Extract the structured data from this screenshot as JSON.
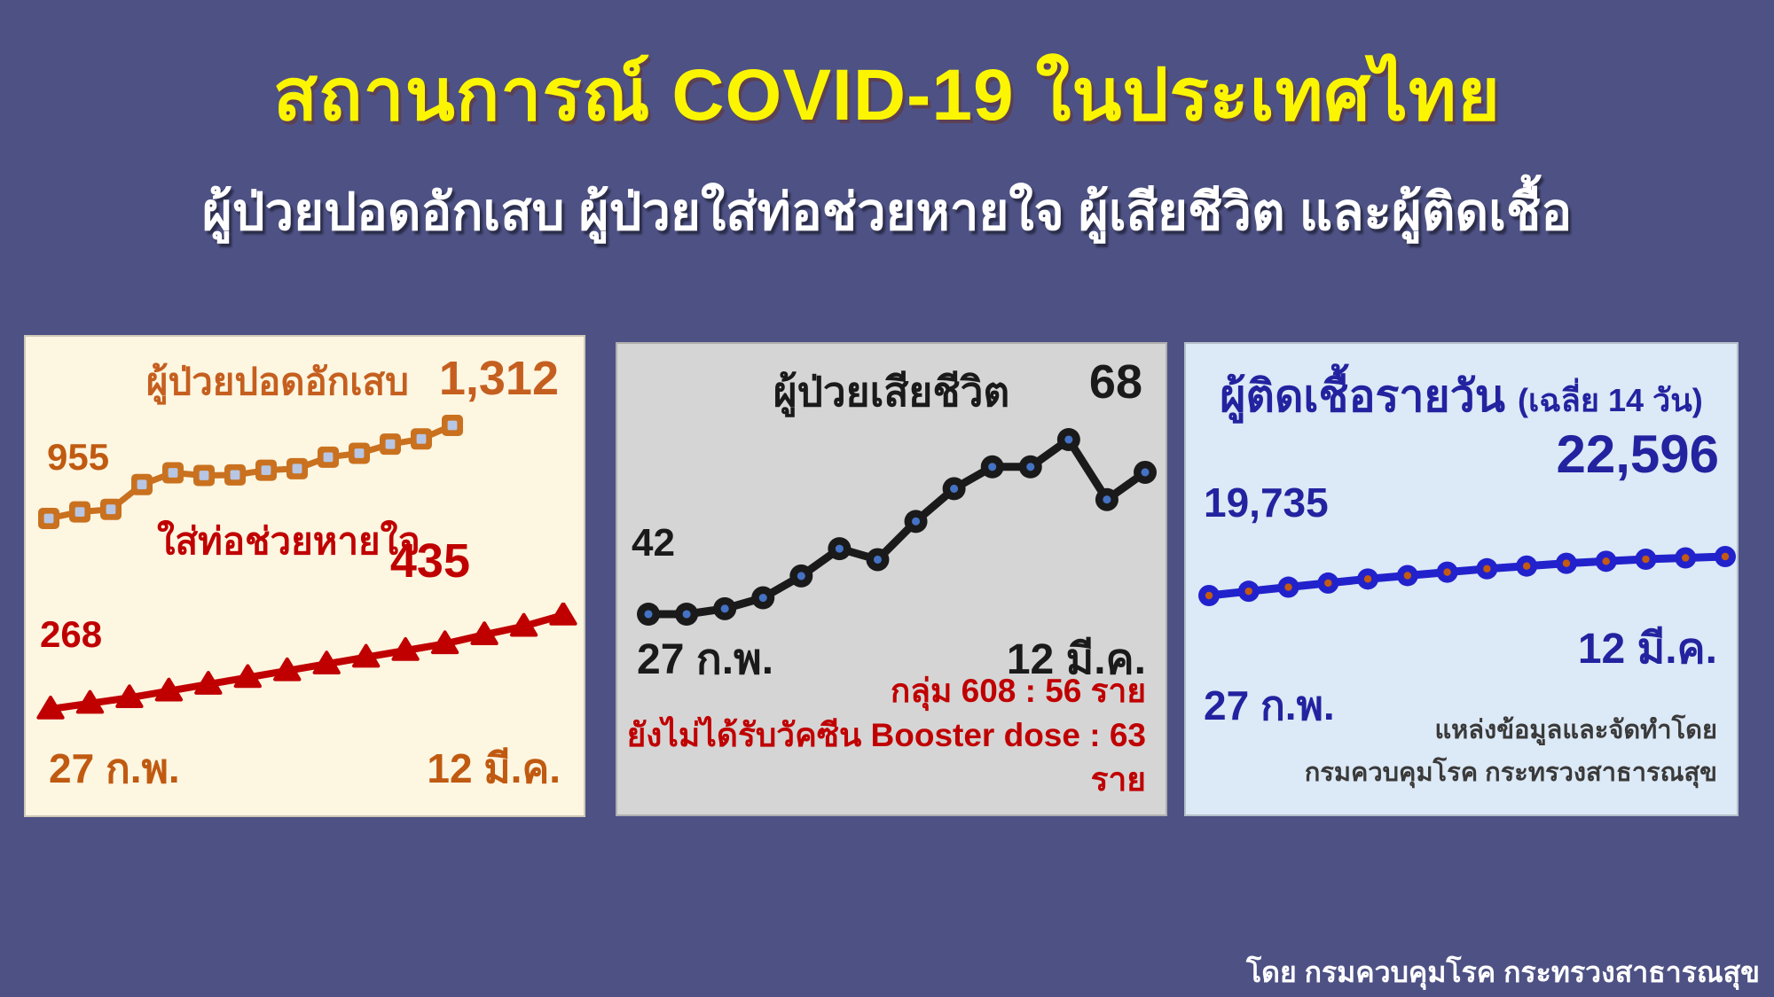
{
  "header": {
    "title": "สถานการณ์ COVID-19 ในประเทศไทย",
    "subtitle": "ผู้ป่วยปอดอักเสบ ผู้ป่วยใส่ท่อช่วยหายใจ ผู้เสียชีวิต และผู้ติดเชื้อ"
  },
  "footer": {
    "credit": "โดย กรมควบคุมโรค กระทรวงสาธารณสุข"
  },
  "colors": {
    "background": "#4D5184",
    "title_yellow": "#FCF502",
    "subtitle_white": "#FFFFFF",
    "panel_pneumonia_bg": "#FDF6E1",
    "panel_deaths_bg": "#D5D5D5",
    "panel_infections_bg": "#DCE9F6",
    "orange": "#C9711F",
    "orange_text": "#C55F1F",
    "orange_date": "#C05A11",
    "marker_blue_fill": "#B6C6E4",
    "dark_red": "#C00000",
    "black_line": "#1A1A1A",
    "deaths_dot_center": "#4472C4",
    "royal_blue": "#2222CC",
    "infections_dot_center": "#C55A11",
    "dark_blue_text": "#2323A0",
    "source_gray": "#3A3A3A"
  },
  "chart_data": [
    {
      "type": "line",
      "panel": "pneumonia-and-intubation",
      "x_first_label": "27 ก.พ.",
      "x_last_label": "12 มี.ค.",
      "x_range": [
        "27 ก.พ.",
        "12 มี.ค."
      ],
      "legend_position": "inline-labels",
      "grid": false,
      "series": [
        {
          "name": "ผู้ป่วยปอดอักเสบ",
          "start_value_label": "955",
          "end_value_label": "1,312",
          "marker": "square",
          "line_color": "#C9711F",
          "marker_fill": "#B6C6E4",
          "values": [
            955,
            980,
            990,
            1085,
            1130,
            1120,
            1122,
            1140,
            1146,
            1190,
            1205,
            1240,
            1260,
            1312
          ]
        },
        {
          "name": "ใส่ท่อช่วยหายใจ",
          "start_value_label": "268",
          "end_value_label": "435",
          "marker": "triangle",
          "line_color": "#C00000",
          "values": [
            268,
            278,
            288,
            300,
            312,
            324,
            336,
            348,
            360,
            372,
            384,
            400,
            415,
            435
          ]
        }
      ]
    },
    {
      "type": "line",
      "panel": "deaths",
      "title": "ผู้ป่วยเสียชีวิต",
      "x_first_label": "27 ก.พ.",
      "x_last_label": "12 มี.ค.",
      "x_range": [
        "27 ก.พ.",
        "12 มี.ค."
      ],
      "grid": false,
      "series": [
        {
          "start_value_label": "42",
          "end_value_label": "68",
          "marker": "circle",
          "line_color": "#1A1A1A",
          "marker_center": "#4472C4",
          "values": [
            42,
            42,
            43,
            45,
            49,
            54,
            52,
            59,
            65,
            69,
            69,
            74,
            63,
            68
          ]
        }
      ],
      "annotations": [
        "กลุ่ม  608 : 56 ราย",
        "ยังไม่ได้รับวัคซีน Booster dose : 63 ราย"
      ]
    },
    {
      "type": "line",
      "panel": "daily-infections",
      "title": "ผู้ติดเชื้อรายวัน",
      "title_suffix": "(เฉลี่ย 14 วัน)",
      "x_first_label": "27 ก.พ.",
      "x_last_label": "12 มี.ค.",
      "x_range": [
        "27 ก.พ.",
        "12 มี.ค."
      ],
      "grid": false,
      "series": [
        {
          "start_value_label": "19,735",
          "end_value_label": "22,596",
          "marker": "circle",
          "line_color": "#2222CC",
          "marker_center": "#C55A11",
          "values": [
            19735,
            20050,
            20350,
            20650,
            20950,
            21200,
            21450,
            21700,
            21900,
            22100,
            22250,
            22400,
            22500,
            22596
          ]
        }
      ],
      "source_lines": [
        "แหล่งข้อมูลและจัดทำโดย",
        "กรมควบคุมโรค กระทรวงสาธารณสุข"
      ]
    }
  ]
}
